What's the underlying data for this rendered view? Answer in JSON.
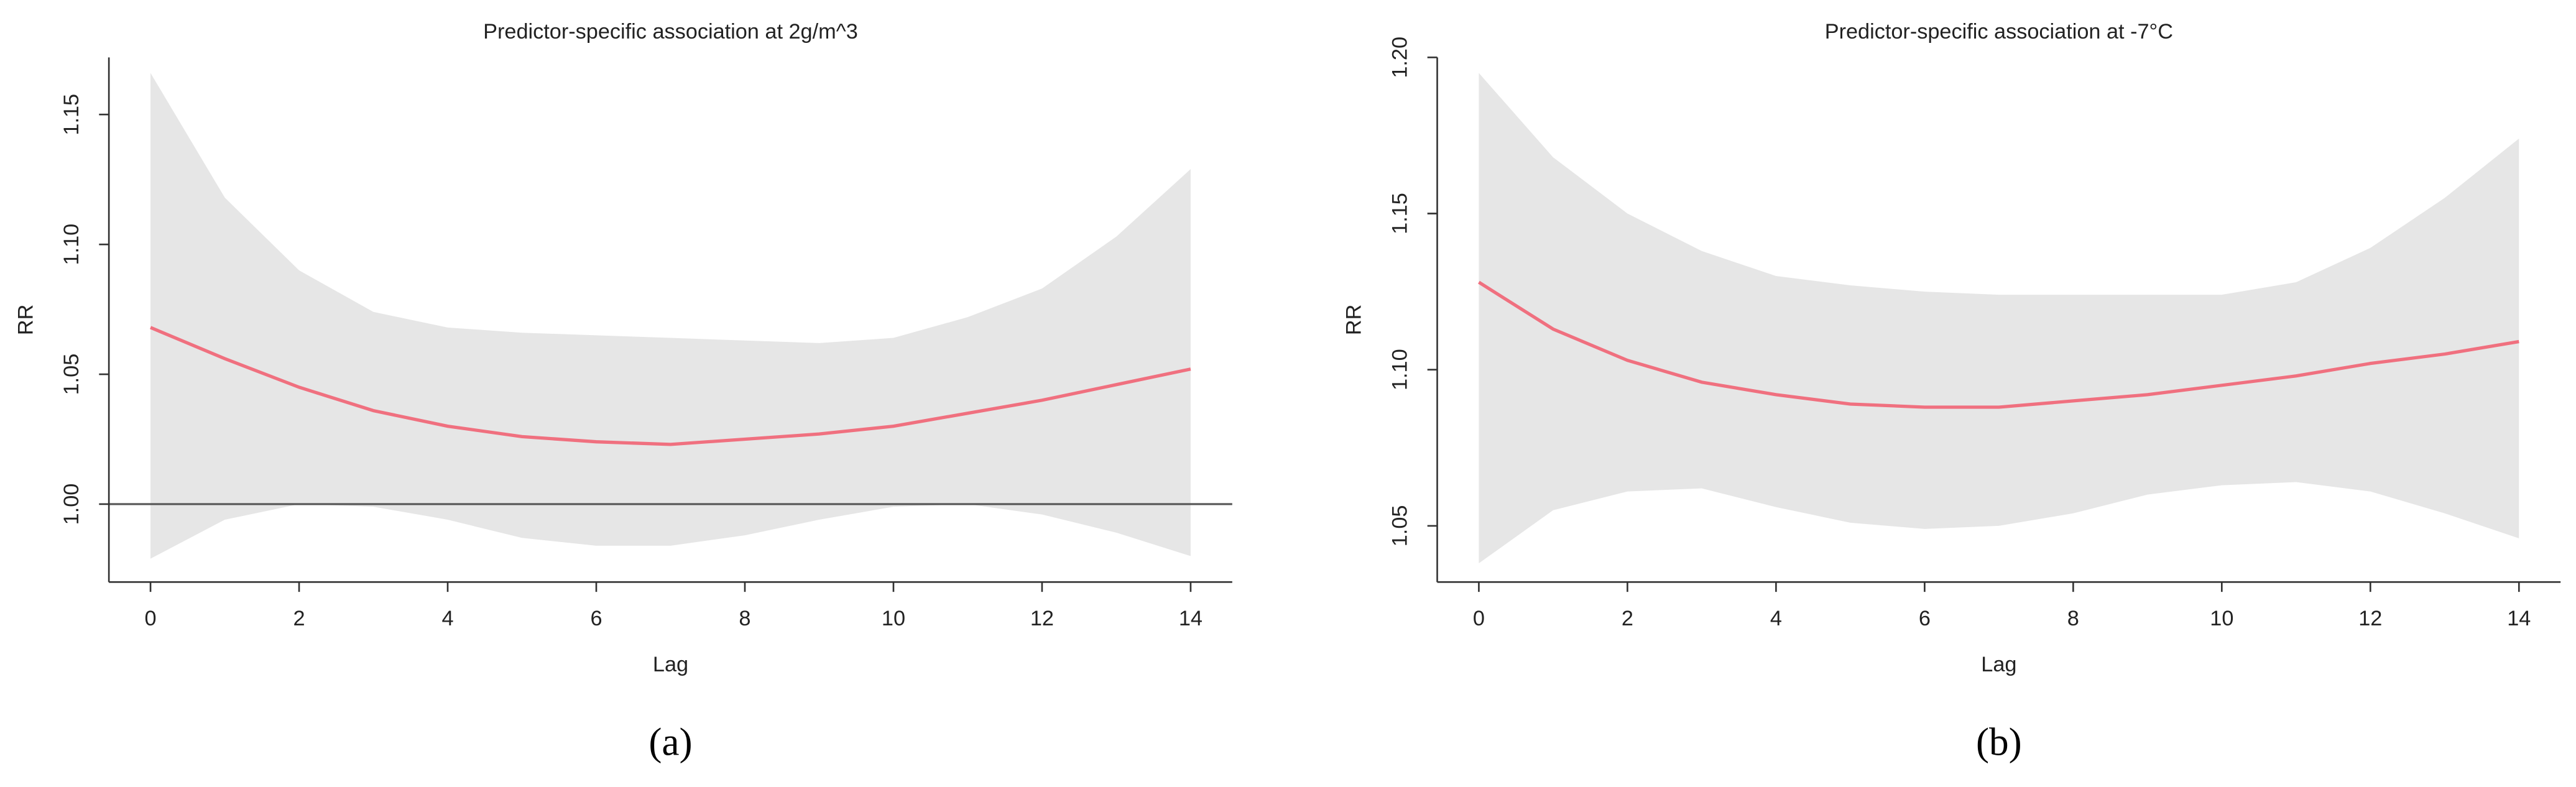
{
  "chart_data": [
    {
      "type": "line",
      "title": "Predictor-specific association at 2g/m^3",
      "xlabel": "Lag",
      "ylabel": "RR",
      "panel_label": "(a)",
      "x": [
        0,
        1,
        2,
        3,
        4,
        5,
        6,
        7,
        8,
        9,
        10,
        11,
        12,
        13,
        14
      ],
      "series": [
        {
          "color": "#f0707f",
          "values": [
            1.068,
            1.056,
            1.045,
            1.036,
            1.03,
            1.026,
            1.024,
            1.023,
            1.025,
            1.027,
            1.03,
            1.035,
            1.04,
            1.046,
            1.052
          ]
        }
      ],
      "band": {
        "color": "#e6e6e6",
        "upper": [
          1.166,
          1.118,
          1.09,
          1.074,
          1.068,
          1.066,
          1.065,
          1.064,
          1.063,
          1.062,
          1.064,
          1.072,
          1.083,
          1.103,
          1.129
        ],
        "lower": [
          0.979,
          0.994,
          1.0,
          0.999,
          0.994,
          0.987,
          0.984,
          0.984,
          0.988,
          0.994,
          0.999,
          1.0,
          0.996,
          0.989,
          0.98
        ]
      },
      "reference_line": {
        "value": 1,
        "color": "#555555"
      },
      "xlim": [
        -0.56,
        14.56
      ],
      "ylim": [
        0.97,
        1.172
      ],
      "xticks": [
        0,
        2,
        4,
        6,
        8,
        10,
        12,
        14
      ],
      "yticks": [
        {
          "value": 1,
          "label": "1.00"
        },
        {
          "value": 1.05,
          "label": "1.05"
        },
        {
          "value": 1.1,
          "label": "1.10"
        },
        {
          "value": 1.15,
          "label": "1.15"
        }
      ]
    },
    {
      "type": "line",
      "title": "Predictor-specific association at -7°C",
      "xlabel": "Lag",
      "ylabel": "RR",
      "panel_label": "(b)",
      "x": [
        0,
        1,
        2,
        3,
        4,
        5,
        6,
        7,
        8,
        9,
        10,
        11,
        12,
        13,
        14
      ],
      "series": [
        {
          "color": "#f0707f",
          "values": [
            1.128,
            1.113,
            1.103,
            1.096,
            1.092,
            1.089,
            1.088,
            1.088,
            1.09,
            1.092,
            1.095,
            1.098,
            1.102,
            1.105,
            1.109
          ]
        }
      ],
      "band": {
        "color": "#e6e6e6",
        "upper": [
          1.195,
          1.168,
          1.15,
          1.138,
          1.13,
          1.127,
          1.125,
          1.124,
          1.124,
          1.124,
          1.124,
          1.128,
          1.139,
          1.155,
          1.174
        ],
        "lower": [
          1.038,
          1.055,
          1.061,
          1.062,
          1.056,
          1.051,
          1.049,
          1.05,
          1.054,
          1.06,
          1.063,
          1.064,
          1.061,
          1.054,
          1.046
        ]
      },
      "xlim": [
        -0.56,
        14.56
      ],
      "ylim": [
        1.032,
        1.2
      ],
      "xticks": [
        0,
        2,
        4,
        6,
        8,
        10,
        12,
        14
      ],
      "yticks": [
        {
          "value": 1.05,
          "label": "1.05"
        },
        {
          "value": 1.1,
          "label": "1.10"
        },
        {
          "value": 1.15,
          "label": "1.15"
        },
        {
          "value": 1.2,
          "label": "1.20"
        }
      ]
    }
  ]
}
